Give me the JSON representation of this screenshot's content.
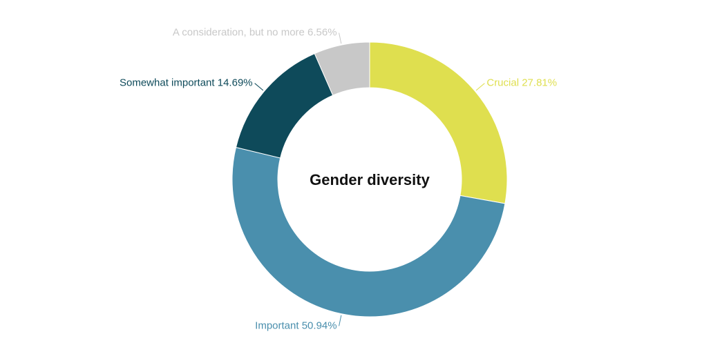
{
  "chart_data": {
    "type": "donut",
    "title": "Gender diversity",
    "categories": [
      "Crucial",
      "Important",
      "Somewhat important",
      "A consideration, but no more"
    ],
    "values": [
      27.81,
      50.94,
      14.69,
      6.56
    ],
    "value_labels": [
      "27.81%",
      "50.94%",
      "14.69%",
      "6.56%"
    ],
    "colors": [
      "#dfdf4f",
      "#4a8fad",
      "#0e4a5a",
      "#c8c8c8"
    ]
  }
}
